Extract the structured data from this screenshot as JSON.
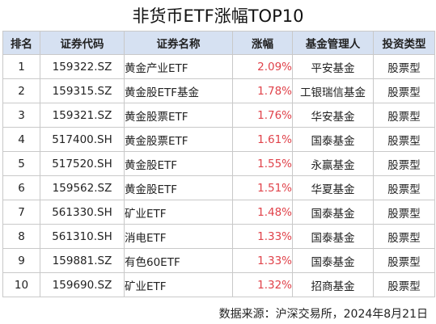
{
  "title": "非货币ETF涨幅TOP10",
  "table": {
    "headers": [
      "排名",
      "证券代码",
      "证券名称",
      "涨幅",
      "基金管理人",
      "投资类型"
    ],
    "rows": [
      {
        "rank": "1",
        "code": "159322.SZ",
        "name": "黄金产业ETF",
        "change": "2.09%",
        "manager": "平安基金",
        "type": "股票型"
      },
      {
        "rank": "2",
        "code": "159315.SZ",
        "name": "黄金股ETF基金",
        "change": "1.78%",
        "manager": "工银瑞信基金",
        "type": "股票型"
      },
      {
        "rank": "3",
        "code": "159321.SZ",
        "name": "黄金股票ETF",
        "change": "1.76%",
        "manager": "华安基金",
        "type": "股票型"
      },
      {
        "rank": "4",
        "code": "517400.SH",
        "name": "黄金股票ETF",
        "change": "1.61%",
        "manager": "国泰基金",
        "type": "股票型"
      },
      {
        "rank": "5",
        "code": "517520.SH",
        "name": "黄金股ETF",
        "change": "1.55%",
        "manager": "永赢基金",
        "type": "股票型"
      },
      {
        "rank": "6",
        "code": "159562.SZ",
        "name": "黄金股ETF",
        "change": "1.51%",
        "manager": "华夏基金",
        "type": "股票型"
      },
      {
        "rank": "7",
        "code": "561330.SH",
        "name": "矿业ETF",
        "change": "1.48%",
        "manager": "国泰基金",
        "type": "股票型"
      },
      {
        "rank": "8",
        "code": "561310.SH",
        "name": "消电ETF",
        "change": "1.33%",
        "manager": "国泰基金",
        "type": "股票型"
      },
      {
        "rank": "9",
        "code": "159881.SZ",
        "name": "有色60ETF",
        "change": "1.33%",
        "manager": "国泰基金",
        "type": "股票型"
      },
      {
        "rank": "10",
        "code": "159690.SZ",
        "name": "矿业ETF",
        "change": "1.32%",
        "manager": "招商基金",
        "type": "股票型"
      }
    ]
  },
  "footer": "数据来源：沪深交易所，2024年8月21日",
  "colors": {
    "header_bg": "#d6e1f2",
    "change_text": "#e0424a",
    "border": "#c9c9c9"
  }
}
